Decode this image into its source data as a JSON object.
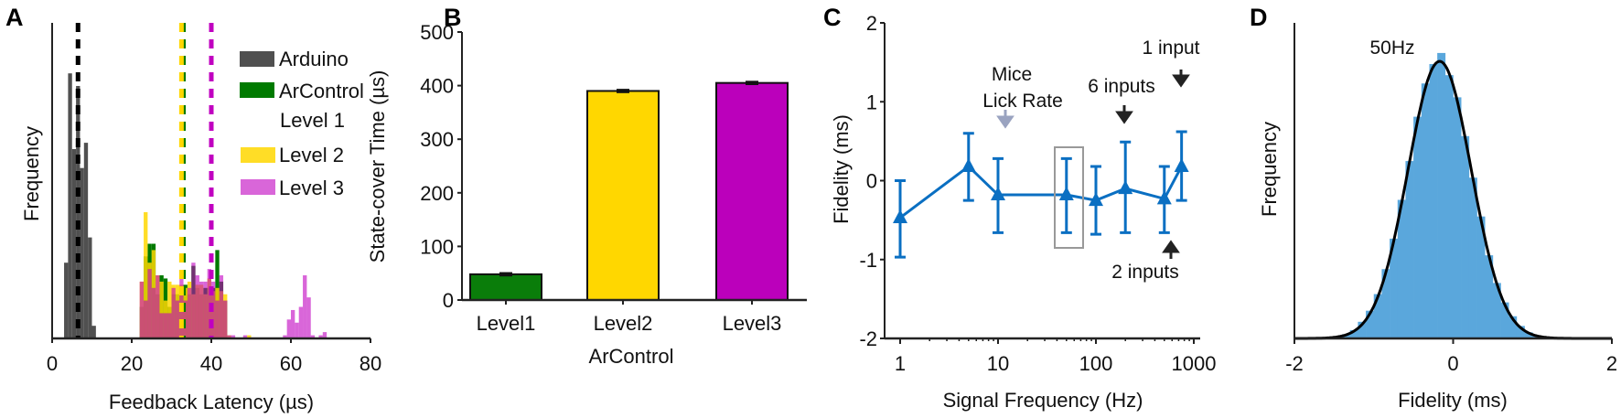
{
  "chart_data": [
    {
      "panel": "A",
      "type": "bar",
      "subtype": "histogram",
      "xlabel": "Feedback Latency (µs)",
      "ylabel": "Frequency",
      "xlim": [
        0,
        80
      ],
      "xticks": [
        "0",
        "20",
        "40",
        "60",
        "80"
      ],
      "ylim": [
        0,
        100
      ],
      "bin_width": 1,
      "legend": [
        "Arduino",
        "ArControl",
        "Level 1",
        "Level 2",
        "Level 3"
      ],
      "legend_position": "top-right",
      "series": [
        {
          "name": "Arduino",
          "color": "#505050",
          "opacity": 1,
          "bins": [
            [
              3,
              24
            ],
            [
              4,
              84
            ],
            [
              5,
              60
            ],
            [
              6,
              80
            ],
            [
              7,
              54
            ],
            [
              8,
              62
            ],
            [
              9,
              32
            ],
            [
              10,
              4
            ]
          ]
        },
        {
          "name": "ArControl Level 1",
          "color": "#007a00",
          "opacity": 1,
          "bins": [
            [
              22,
              10
            ],
            [
              23,
              26
            ],
            [
              24,
              30
            ],
            [
              25,
              30
            ],
            [
              26,
              14
            ],
            [
              27,
              20
            ],
            [
              28,
              19
            ],
            [
              29,
              10
            ],
            [
              30,
              14
            ],
            [
              31,
              14
            ],
            [
              32,
              14
            ],
            [
              33,
              17
            ],
            [
              34,
              14
            ],
            [
              35,
              23
            ],
            [
              36,
              16
            ],
            [
              37,
              14
            ],
            [
              38,
              16
            ],
            [
              39,
              16
            ],
            [
              40,
              16
            ],
            [
              41,
              28
            ],
            [
              42,
              18
            ],
            [
              43,
              12
            ]
          ]
        },
        {
          "name": "Level 2",
          "color": "#ffd700",
          "opacity": 0.85,
          "bins": [
            [
              22,
              18
            ],
            [
              23,
              40
            ],
            [
              24,
              24
            ],
            [
              25,
              28
            ],
            [
              26,
              20
            ],
            [
              27,
              18
            ],
            [
              28,
              12
            ],
            [
              29,
              18
            ],
            [
              30,
              17
            ],
            [
              31,
              17
            ],
            [
              32,
              17
            ],
            [
              33,
              16
            ],
            [
              34,
              18
            ],
            [
              35,
              14
            ],
            [
              36,
              17
            ],
            [
              37,
              17
            ],
            [
              38,
              14
            ],
            [
              39,
              19
            ],
            [
              40,
              15
            ],
            [
              41,
              16
            ],
            [
              42,
              15
            ],
            [
              43,
              14
            ],
            [
              44,
              1
            ],
            [
              49,
              1
            ]
          ]
        },
        {
          "name": "Level 3",
          "color": "#c000c0",
          "opacity": 0.6,
          "bins": [
            [
              22,
              18
            ],
            [
              23,
              12
            ],
            [
              24,
              22
            ],
            [
              25,
              16
            ],
            [
              26,
              20
            ],
            [
              27,
              8
            ],
            [
              28,
              8
            ],
            [
              29,
              8
            ],
            [
              30,
              16
            ],
            [
              31,
              12
            ],
            [
              32,
              20
            ],
            [
              33,
              12
            ],
            [
              34,
              16
            ],
            [
              35,
              24
            ],
            [
              36,
              20
            ],
            [
              37,
              18
            ],
            [
              38,
              18
            ],
            [
              39,
              22
            ],
            [
              40,
              18
            ],
            [
              41,
              12
            ],
            [
              42,
              20
            ],
            [
              43,
              12
            ],
            [
              44,
              1
            ],
            [
              45,
              1
            ],
            [
              48,
              1
            ],
            [
              58,
              1
            ],
            [
              59,
              6
            ],
            [
              60,
              9
            ],
            [
              61,
              5
            ],
            [
              62,
              10
            ],
            [
              63,
              20
            ],
            [
              64,
              13
            ],
            [
              65,
              1
            ],
            [
              67,
              1
            ],
            [
              68,
              2
            ]
          ]
        }
      ],
      "mean_lines": [
        {
          "name": "Arduino",
          "value": 6.5,
          "color": "#000000"
        },
        {
          "name": "Level 1",
          "value": 33,
          "color": "#007a00"
        },
        {
          "name": "Level 2",
          "value": 32.5,
          "color": "#ffd700"
        },
        {
          "name": "Level 3",
          "value": 40,
          "color": "#c000c0"
        }
      ]
    },
    {
      "panel": "B",
      "type": "bar",
      "categories": [
        "Level1",
        "Level2",
        "Level3"
      ],
      "values": [
        48,
        390,
        405
      ],
      "errors": [
        4,
        4,
        4
      ],
      "colors": [
        "#0a7d0a",
        "#ffd700",
        "#bb00bb"
      ],
      "xlabel": "ArControl",
      "ylabel": "State-cover Time (µs)",
      "ylim": [
        0,
        500
      ],
      "yticks": [
        "0",
        "100",
        "200",
        "300",
        "400",
        "500"
      ]
    },
    {
      "panel": "C",
      "type": "line",
      "xscale": "log",
      "x": [
        1,
        5,
        10,
        50,
        100,
        200,
        500,
        750
      ],
      "y": [
        -0.47,
        0.18,
        -0.18,
        -0.18,
        -0.25,
        -0.1,
        -0.23,
        0.18
      ],
      "err_low": [
        -0.97,
        -0.25,
        -0.66,
        -0.66,
        -0.68,
        -0.66,
        -0.66,
        -0.25
      ],
      "err_high": [
        0.0,
        0.6,
        0.28,
        0.28,
        0.18,
        0.49,
        0.18,
        0.62
      ],
      "color": "#0a6fc2",
      "xlabel": "Signal Frequency (Hz)",
      "ylabel": "Fidelity (ms)",
      "xlim": [
        1,
        1000
      ],
      "ylim": [
        -2,
        2
      ],
      "xticks": [
        "1",
        "10",
        "100",
        "1000"
      ],
      "yticks": [
        "-2",
        "-1",
        "0",
        "1",
        "2"
      ],
      "annotations": {
        "mice": "Mice",
        "lick_rate": "Lick Rate",
        "six_inputs": "6 inputs",
        "one_input": "1 input",
        "two_inputs": "2 inputs"
      },
      "highlighted_x": 50
    },
    {
      "panel": "D",
      "type": "bar",
      "subtype": "histogram-with-gaussian-fit",
      "title": "50Hz",
      "xlabel": "Fidelity (ms)",
      "ylabel": "Frequency",
      "xlim": [
        -2,
        2
      ],
      "xticks": [
        "-2",
        "0",
        "2"
      ],
      "bin_width": 0.1,
      "bin_centers": [
        -1.45,
        -1.35,
        -1.25,
        -1.15,
        -1.05,
        -0.95,
        -0.85,
        -0.75,
        -0.65,
        -0.55,
        -0.45,
        -0.35,
        -0.25,
        -0.15,
        -0.05,
        0.05,
        0.15,
        0.25,
        0.35,
        0.45,
        0.55,
        0.65,
        0.75,
        0.85,
        0.95,
        1.05,
        1.15
      ],
      "values": [
        0.008,
        0.015,
        0.03,
        0.06,
        0.1,
        0.16,
        0.25,
        0.36,
        0.5,
        0.64,
        0.8,
        0.92,
        0.99,
        1.03,
        0.95,
        0.87,
        0.73,
        0.58,
        0.44,
        0.3,
        0.2,
        0.13,
        0.08,
        0.045,
        0.022,
        0.01,
        0.005
      ],
      "color": "#5aa7dc",
      "fit": {
        "mean": -0.17,
        "sd": 0.4,
        "peak": 1.0,
        "color": "#000000"
      }
    }
  ],
  "panels": {
    "a": "A",
    "b": "B",
    "c": "C",
    "d": "D"
  }
}
